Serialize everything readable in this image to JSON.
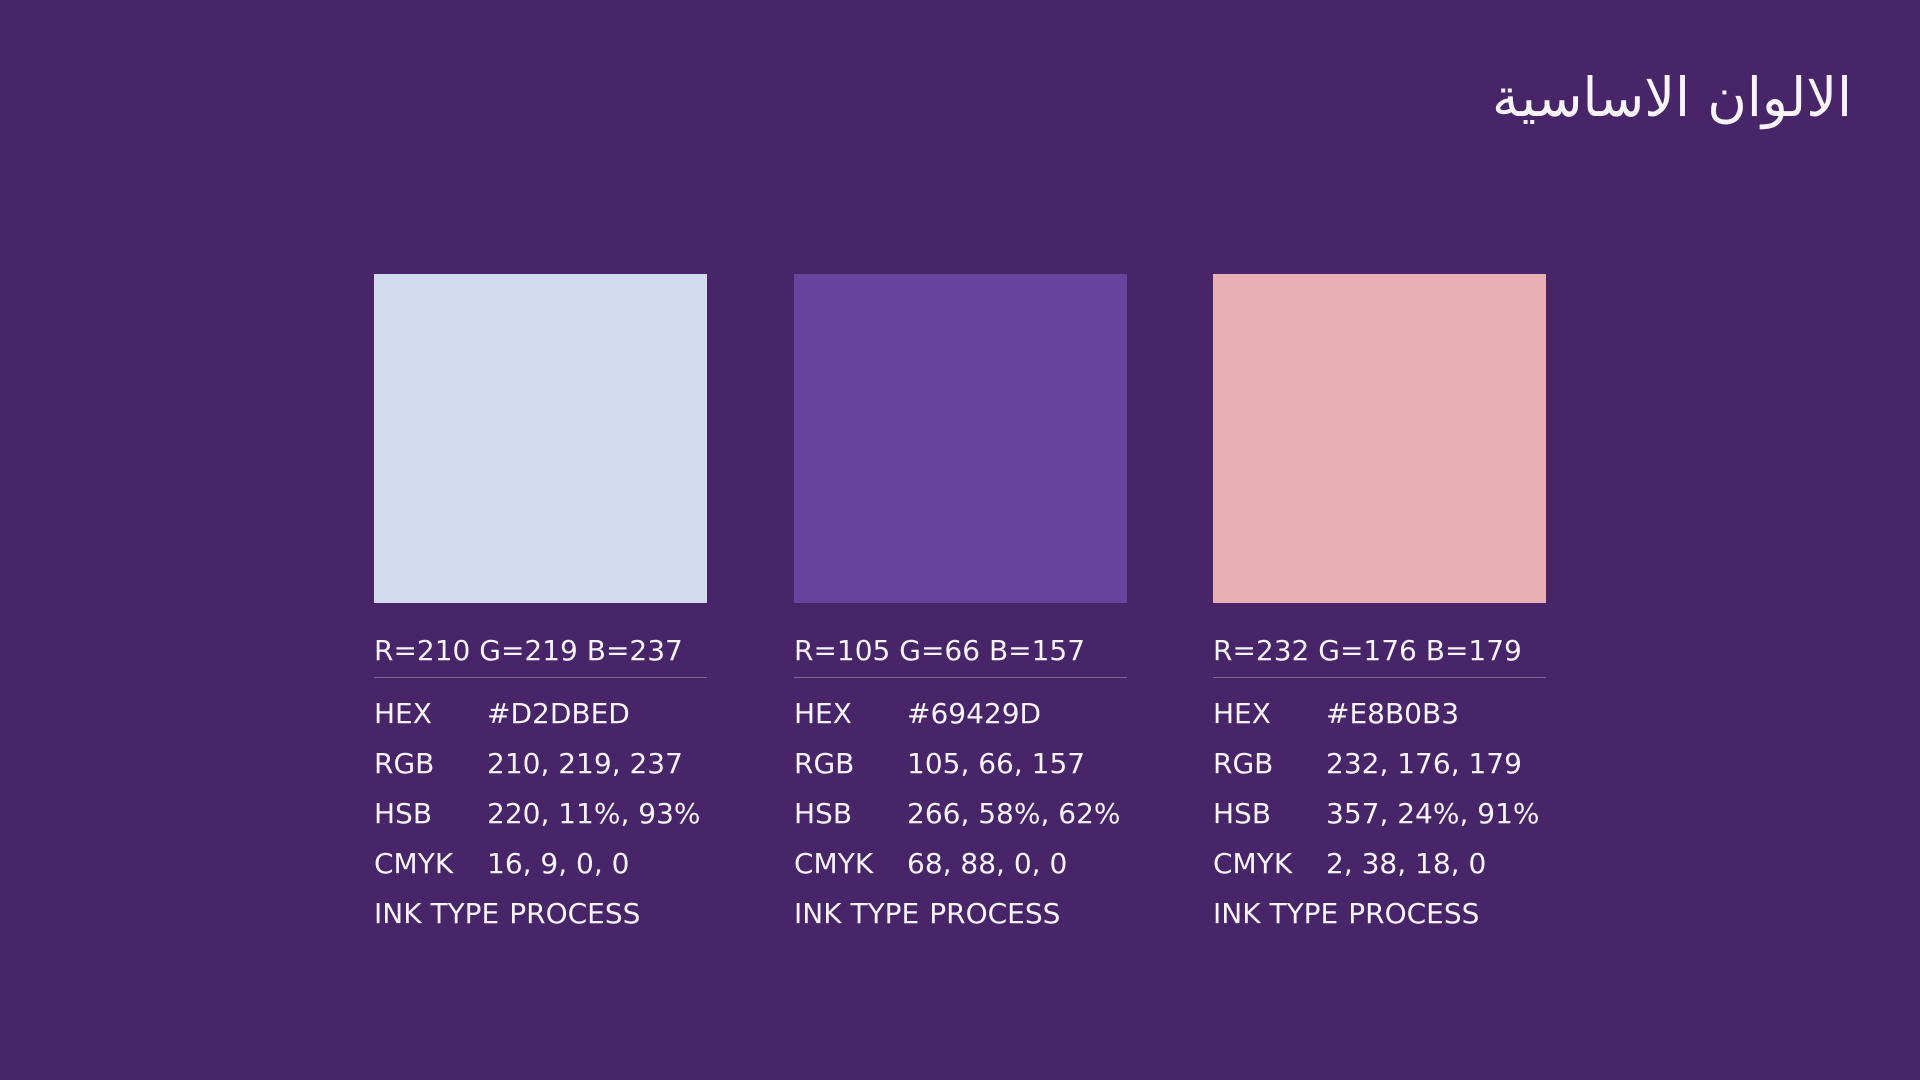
{
  "page": {
    "title": "الالوان الاساسية",
    "background_color": "#472568",
    "text_color": "#F6F3F9",
    "divider_color": "rgba(255,255,255,0.30)"
  },
  "cards": [
    {
      "name": "primary-color-light-lavender",
      "swatch_color": "#D2DBED",
      "rgb_summary": "R=210 G=219 B=237",
      "specs": [
        {
          "label": "HEX",
          "value": "#D2DBED"
        },
        {
          "label": "RGB",
          "value": "210, 219, 237"
        },
        {
          "label": "HSB",
          "value": "220, 11%, 93%"
        },
        {
          "label": "CMYK",
          "value": "16, 9, 0, 0"
        },
        {
          "label": "INK TYPE",
          "value": "PROCESS"
        }
      ]
    },
    {
      "name": "primary-color-purple",
      "swatch_color": "#69429D",
      "rgb_summary": "R=105 G=66 B=157",
      "specs": [
        {
          "label": "HEX",
          "value": "#69429D"
        },
        {
          "label": "RGB",
          "value": "105, 66, 157"
        },
        {
          "label": "HSB",
          "value": "266, 58%, 62%"
        },
        {
          "label": "CMYK",
          "value": "68, 88, 0, 0"
        },
        {
          "label": "INK TYPE",
          "value": "PROCESS"
        }
      ]
    },
    {
      "name": "primary-color-pink",
      "swatch_color": "#E8B0B3",
      "rgb_summary": "R=232 G=176 B=179",
      "specs": [
        {
          "label": "HEX",
          "value": "#E8B0B3"
        },
        {
          "label": "RGB",
          "value": "232, 176, 179"
        },
        {
          "label": "HSB",
          "value": "357, 24%, 91%"
        },
        {
          "label": "CMYK",
          "value": "2, 38, 18, 0"
        },
        {
          "label": "INK TYPE",
          "value": "PROCESS"
        }
      ]
    }
  ]
}
